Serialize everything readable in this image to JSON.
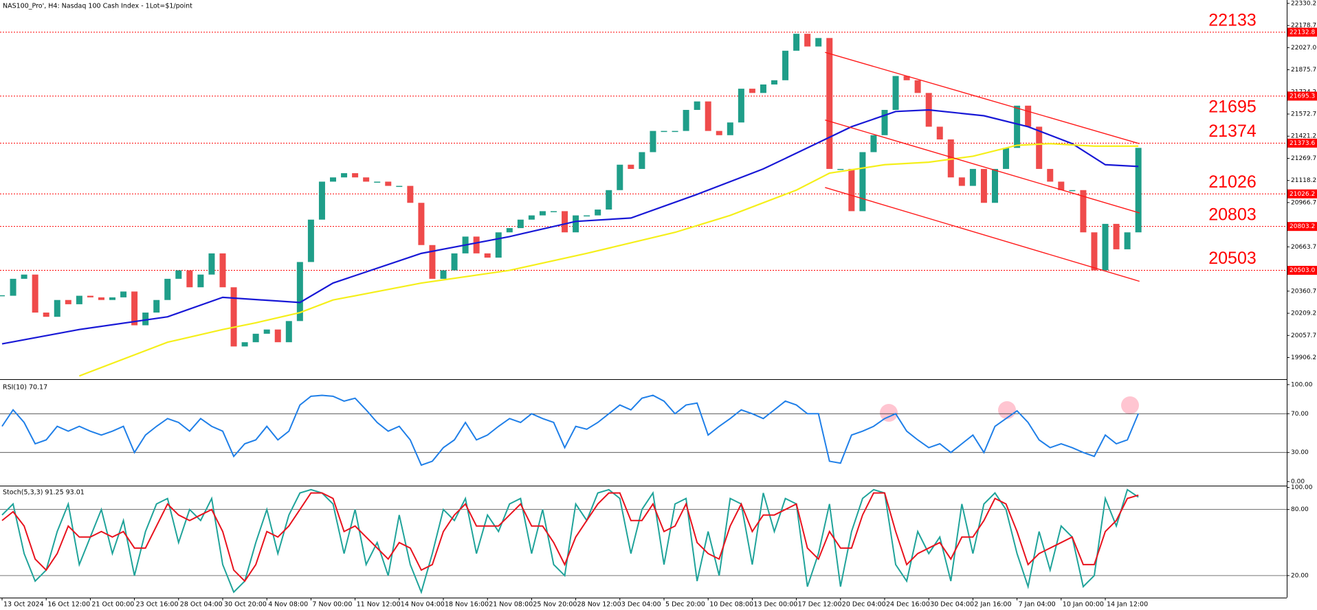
{
  "chart_data": [
    {
      "type": "candlestick",
      "title": "NAS100_Pro', H4:  Nasdaq 100 Cash Index - 1Lot=$1/point",
      "categories": [
        "13 Oct 2024",
        null,
        null,
        null,
        "16 Oct 12:00",
        null,
        null,
        null,
        "21 Oct 00:00",
        null,
        null,
        null,
        "23 Oct 16:00",
        null,
        null,
        null,
        "28 Oct 04:00",
        null,
        null,
        null,
        "30 Oct 20:00",
        null,
        null,
        null,
        "4 Nov 08:00",
        null,
        null,
        null,
        "7 Nov 00:00",
        null,
        null,
        null,
        "11 Nov 12:00",
        null,
        null,
        null,
        "14 Nov 04:00",
        null,
        null,
        null,
        "18 Nov 16:00",
        null,
        null,
        null,
        "21 Nov 08:00",
        null,
        null,
        null,
        "25 Nov 20:00",
        null,
        null,
        null,
        "28 Nov 12:00",
        null,
        null,
        null,
        "3 Dec 04:00",
        null,
        null,
        null,
        "5 Dec 20:00",
        null,
        null,
        null,
        "10 Dec 08:00",
        null,
        null,
        null,
        "13 Dec 00:00",
        null,
        null,
        null,
        "17 Dec 12:00",
        null,
        null,
        null,
        "20 Dec 04:00",
        null,
        null,
        null,
        "24 Dec 16:00",
        null,
        null,
        null,
        "30 Dec 04:00",
        null,
        null,
        null,
        "2 Jan 16:00",
        null,
        null,
        null,
        "7 Jan 04:00",
        null,
        null,
        null,
        "10 Jan 00:00",
        null,
        null,
        null,
        "14 Jan 12:00",
        null,
        null,
        null
      ],
      "closes": [
        20329,
        20445,
        20474,
        20214,
        20185,
        20300,
        20271,
        20329,
        20318,
        20300,
        20318,
        20358,
        20127,
        20214,
        20300,
        20445,
        20503,
        20387,
        20474,
        20619,
        20387,
        19982,
        20011,
        20069,
        20098,
        20011,
        20156,
        20560,
        20850,
        21110,
        21139,
        21168,
        21139,
        21110,
        21110,
        21081,
        21081,
        20965,
        20676,
        20445,
        20503,
        20619,
        20734,
        20619,
        20590,
        20763,
        20792,
        20850,
        20879,
        20908,
        20908,
        20763,
        20879,
        20879,
        20919,
        21052,
        21226,
        21197,
        21312,
        21457,
        21457,
        21457,
        21601,
        21659,
        21457,
        21428,
        21515,
        21746,
        21717,
        21775,
        21804,
        22006,
        22122,
        22035,
        22093,
        21197,
        21197,
        20908,
        21312,
        21428,
        21601,
        21833,
        21804,
        21717,
        21486,
        21399,
        21139,
        21081,
        21197,
        20965,
        21197,
        21341,
        21630,
        21486,
        21197,
        21110,
        21052,
        21052,
        20763,
        20503,
        20821,
        20647,
        20763,
        21341
      ],
      "up_color": "#1f9e89",
      "down_color": "#ef4b4b",
      "series": [
        {
          "color": "#1818d6",
          "x": [
            0,
            7,
            15,
            20,
            27,
            30,
            38,
            46,
            52,
            57,
            63,
            69,
            73,
            77,
            81,
            84,
            89,
            93,
            97,
            100,
            103
          ],
          "values": [
            20000,
            20098,
            20185,
            20318,
            20283,
            20416,
            20619,
            20734,
            20838,
            20861,
            21023,
            21197,
            21341,
            21486,
            21590,
            21601,
            21561,
            21486,
            21370,
            21226,
            21214
          ]
        },
        {
          "color": "#f5ef1a",
          "x": [
            7,
            15,
            20,
            23,
            27,
            30,
            38,
            46,
            53,
            61,
            66,
            72,
            75,
            80,
            84,
            88,
            92,
            95,
            99,
            103
          ],
          "values": [
            19780,
            20011,
            20098,
            20144,
            20214,
            20300,
            20416,
            20503,
            20619,
            20763,
            20879,
            21052,
            21168,
            21226,
            21243,
            21284,
            21359,
            21370,
            21353,
            21353
          ]
        }
      ],
      "trendlines": {
        "color": "#ff1a1a",
        "lines": [
          {
            "x": [
              74.6,
              103.1
            ],
            "values": [
              21995,
              21370
            ]
          },
          {
            "x": [
              74.6,
              103.1
            ],
            "values": [
              21532,
              20896
            ]
          },
          {
            "x": [
              74.6,
              103.1
            ],
            "values": [
              21070,
              20428
            ]
          }
        ]
      },
      "levels": [
        {
          "value": 22132.8,
          "label": "22133",
          "axis_label": "22132.8"
        },
        {
          "value": 21695.3,
          "label": "21695",
          "axis_label": "21695.3"
        },
        {
          "value": 21373.6,
          "label": "21374",
          "axis_label": "21373.6"
        },
        {
          "value": 21026.2,
          "label": "21026",
          "axis_label": "21026.2"
        },
        {
          "value": 20803.2,
          "label": "20803",
          "axis_label": "20803.2"
        },
        {
          "value": 20503,
          "label": "20503",
          "axis_label": "20503.0"
        }
      ],
      "level_color": "#ff0000",
      "ylim": [
        19762.7,
        22353.2
      ],
      "yticks": [
        22330.2,
        22178.7,
        {
          "value": 22027,
          "label": "22027.0"
        },
        21875.7,
        21724.2,
        21572.7,
        21421.2,
        21269.7,
        21118.2,
        20966.7,
        20663.7,
        20360.7,
        20209.2,
        20057.7,
        19906.2
      ]
    },
    {
      "type": "line",
      "title": "RSI(10) 70.17",
      "color": "#1f7fe8",
      "values": [
        57,
        74,
        61,
        39,
        43,
        57,
        52,
        57,
        52,
        48,
        52,
        57,
        30,
        48,
        57,
        65,
        61,
        52,
        65,
        57,
        52,
        26,
        39,
        43,
        57,
        43,
        52,
        79,
        88,
        89,
        88,
        83,
        86,
        74,
        61,
        52,
        57,
        43,
        17,
        21,
        35,
        43,
        61,
        43,
        48,
        57,
        65,
        61,
        70,
        65,
        61,
        35,
        57,
        54,
        61,
        70,
        79,
        74,
        86,
        89,
        83,
        70,
        79,
        81,
        48,
        57,
        65,
        74,
        70,
        65,
        74,
        83,
        79,
        70,
        70,
        21,
        19,
        48,
        52,
        57,
        65,
        70,
        52,
        43,
        35,
        39,
        30,
        39,
        48,
        30,
        57,
        65,
        73,
        61,
        43,
        35,
        39,
        35,
        30,
        26,
        48,
        39,
        43,
        70.17
      ],
      "hlines": [
        70,
        30
      ],
      "ylim": [
        -3.5,
        103.5
      ],
      "yticks": [
        {
          "value": 100,
          "label": "100.00"
        },
        {
          "value": 70,
          "label": "70.00"
        },
        {
          "value": 30,
          "label": "30.00"
        },
        {
          "value": 0,
          "label": "0.00"
        }
      ]
    },
    {
      "type": "line",
      "title": "Stoch(5,3,3) 91.25 93.01",
      "series": [
        {
          "color": "#1fa39a",
          "values": [
            75,
            85,
            40,
            15,
            25,
            60,
            85,
            30,
            55,
            80,
            40,
            70,
            20,
            60,
            85,
            90,
            50,
            80,
            70,
            90,
            30,
            5,
            15,
            50,
            80,
            40,
            75,
            95,
            98,
            95,
            85,
            40,
            80,
            30,
            50,
            20,
            75,
            30,
            5,
            40,
            80,
            70,
            90,
            40,
            75,
            60,
            85,
            90,
            40,
            80,
            30,
            20,
            85,
            70,
            95,
            98,
            90,
            40,
            80,
            95,
            30,
            85,
            90,
            15,
            60,
            20,
            90,
            85,
            30,
            95,
            60,
            90,
            85,
            10,
            40,
            85,
            10,
            60,
            90,
            98,
            95,
            30,
            15,
            60,
            40,
            55,
            15,
            85,
            40,
            85,
            95,
            80,
            40,
            10,
            60,
            25,
            65,
            55,
            10,
            20,
            90,
            65,
            98,
            91.25
          ]
        },
        {
          "color": "#e8121d",
          "values": [
            70,
            78,
            65,
            35,
            25,
            40,
            65,
            55,
            55,
            60,
            55,
            60,
            45,
            45,
            65,
            85,
            75,
            70,
            75,
            80,
            60,
            25,
            15,
            30,
            60,
            55,
            65,
            80,
            95,
            95,
            90,
            60,
            65,
            55,
            45,
            35,
            50,
            45,
            25,
            30,
            60,
            75,
            85,
            65,
            65,
            65,
            75,
            85,
            65,
            65,
            50,
            30,
            55,
            70,
            85,
            95,
            95,
            70,
            70,
            85,
            60,
            65,
            85,
            50,
            40,
            35,
            65,
            85,
            60,
            75,
            75,
            80,
            85,
            45,
            35,
            60,
            45,
            45,
            75,
            95,
            95,
            60,
            30,
            40,
            45,
            50,
            35,
            55,
            55,
            70,
            90,
            85,
            60,
            30,
            40,
            45,
            50,
            55,
            30,
            30,
            60,
            70,
            90,
            93.01
          ]
        }
      ],
      "hlines": [
        80,
        20
      ],
      "ylim": [
        0,
        101
      ],
      "yticks": [
        {
          "value": 100,
          "label": "100.00"
        },
        {
          "value": 80,
          "label": "80.00"
        },
        {
          "value": 20,
          "label": "20.00"
        }
      ]
    }
  ]
}
